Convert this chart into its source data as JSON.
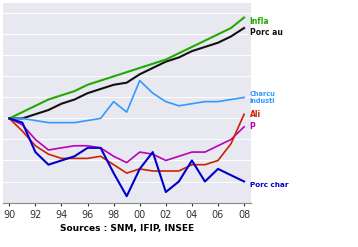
{
  "years": [
    1990,
    1991,
    1992,
    1993,
    1994,
    1995,
    1996,
    1997,
    1998,
    1999,
    2000,
    2001,
    2002,
    2003,
    2004,
    2005,
    2006,
    2007,
    2008
  ],
  "inflation": [
    100,
    103,
    106,
    109,
    111,
    113,
    116,
    118,
    120,
    122,
    124,
    126,
    128,
    131,
    134,
    137,
    140,
    143,
    148
  ],
  "porc_au": [
    100,
    100,
    102,
    104,
    107,
    109,
    112,
    114,
    116,
    117,
    121,
    124,
    127,
    129,
    132,
    134,
    136,
    139,
    143
  ],
  "charcuterie": [
    100,
    100,
    99,
    98,
    98,
    98,
    99,
    100,
    108,
    103,
    118,
    112,
    108,
    106,
    107,
    108,
    108,
    109,
    110
  ],
  "porc_vif": [
    100,
    97,
    90,
    85,
    86,
    87,
    87,
    86,
    82,
    79,
    84,
    83,
    80,
    82,
    84,
    84,
    87,
    90,
    96
  ],
  "aliments": [
    100,
    94,
    87,
    83,
    81,
    81,
    81,
    82,
    78,
    74,
    76,
    75,
    75,
    75,
    78,
    78,
    80,
    88,
    102
  ],
  "porc_charcutier": [
    100,
    98,
    84,
    78,
    80,
    82,
    86,
    86,
    74,
    63,
    76,
    84,
    65,
    70,
    80,
    70,
    76,
    73,
    70
  ],
  "inflation_color": "#22aa00",
  "porc_au_color": "#111111",
  "charcuterie_color": "#3399ff",
  "porc_vif_color": "#bb00bb",
  "aliments_color": "#cc2200",
  "porc_charcutier_color": "#0000cc",
  "inflation_label": "Infla",
  "porc_au_label": "Porc au",
  "charcuterie_label": "Charcu\nindusti",
  "porc_vif_label": "P",
  "aliments_label": "Ali",
  "porc_charcutier_label": "Porc char",
  "xlabel": "Sources : SNM, IFIP, INSEE",
  "ylim": [
    60,
    155
  ],
  "bg_color": "#e8e8f0"
}
